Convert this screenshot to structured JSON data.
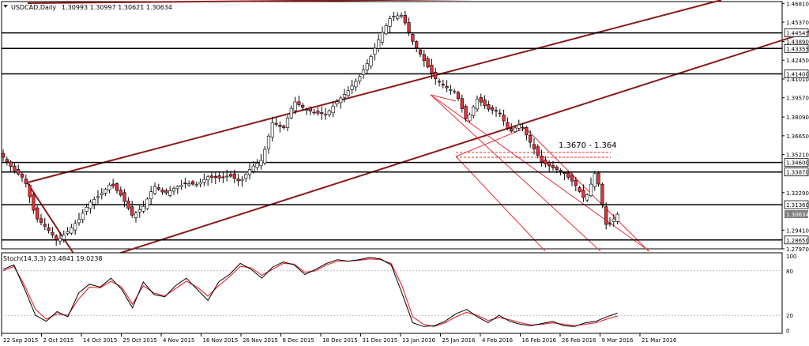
{
  "header": {
    "symbol_label": "USDCAD,Daily",
    "ohlc": "1.30993 1.30997 1.30621 1.30634"
  },
  "chart_data": {
    "type": "candlestick",
    "title": "USDCAD,Daily",
    "colors": {
      "bull": "#ffffff",
      "bear": "#e8303a",
      "outline": "#000000",
      "channel": "#8b1a1a",
      "stoch_main": "#000000",
      "stoch_signal": "#e8303a",
      "current_label": "#7f7f7f"
    },
    "ylim": [
      1.2797,
      1.4695
    ],
    "y_ticks": [
      "1.46810",
      "1.45370",
      "1.43890",
      "1.42450",
      "1.41010",
      "1.39570",
      "1.38090",
      "1.36650",
      "1.35210",
      "1.32290",
      "1.29410",
      "1.27970"
    ],
    "x_tick_labels": [
      "22 Sep 2015",
      "2 Oct 2015",
      "14 Oct 2015",
      "25 Oct 2015",
      "4 Nov 2015",
      "16 Nov 2015",
      "26 Nov 2015",
      "8 Dec 2015",
      "18 Dec 2015",
      "31 Dec 2015",
      "13 Jan 2016",
      "25 Jan 2016",
      "4 Feb 2016",
      "16 Feb 2016",
      "26 Feb 2016",
      "9 Mar 2016",
      "21 Mar 2016"
    ],
    "horizontal_levels": [
      "1.44545",
      "1.43355",
      "1.41400",
      "1.34600",
      "1.33870",
      "1.31360",
      "1.28650"
    ],
    "current_price": "1.30634",
    "annotation": "1.3670 - 1.364",
    "anchors": [
      1.35,
      1.34,
      1.333,
      1.304,
      1.296,
      1.286,
      1.293,
      1.302,
      1.315,
      1.321,
      1.33,
      1.32,
      1.305,
      1.312,
      1.328,
      1.322,
      1.327,
      1.33,
      1.329,
      1.335,
      1.334,
      1.336,
      1.331,
      1.342,
      1.348,
      1.377,
      1.372,
      1.393,
      1.387,
      1.384,
      1.383,
      1.393,
      1.401,
      1.411,
      1.425,
      1.443,
      1.458,
      1.459,
      1.439,
      1.425,
      1.411,
      1.404,
      1.4,
      1.378,
      1.395,
      1.387,
      1.385,
      1.369,
      1.376,
      1.36,
      1.346,
      1.342,
      1.338,
      1.33,
      1.317,
      1.34,
      1.296,
      1.3063
    ],
    "stochastic": {
      "label": "Stoch(14,3,3) 23.4841 19.0238",
      "levels": [
        "100",
        "80",
        "20",
        "0"
      ],
      "main": [
        82,
        88,
        55,
        20,
        12,
        25,
        18,
        50,
        62,
        58,
        70,
        55,
        30,
        65,
        48,
        45,
        60,
        70,
        55,
        40,
        65,
        75,
        90,
        82,
        70,
        85,
        92,
        88,
        75,
        82,
        90,
        95,
        93,
        95,
        98,
        96,
        88,
        50,
        10,
        5,
        6,
        12,
        22,
        28,
        18,
        10,
        20,
        12,
        8,
        6,
        9,
        12,
        6,
        5,
        10,
        12,
        18,
        23
      ],
      "signal": [
        80,
        86,
        60,
        28,
        15,
        22,
        20,
        42,
        58,
        57,
        66,
        58,
        35,
        60,
        50,
        46,
        56,
        66,
        58,
        46,
        60,
        72,
        86,
        84,
        74,
        82,
        90,
        89,
        78,
        80,
        88,
        93,
        93,
        94,
        96,
        95,
        90,
        60,
        18,
        8,
        5,
        10,
        18,
        24,
        20,
        13,
        17,
        14,
        10,
        7,
        8,
        10,
        8,
        6,
        8,
        10,
        15,
        19
      ]
    }
  }
}
